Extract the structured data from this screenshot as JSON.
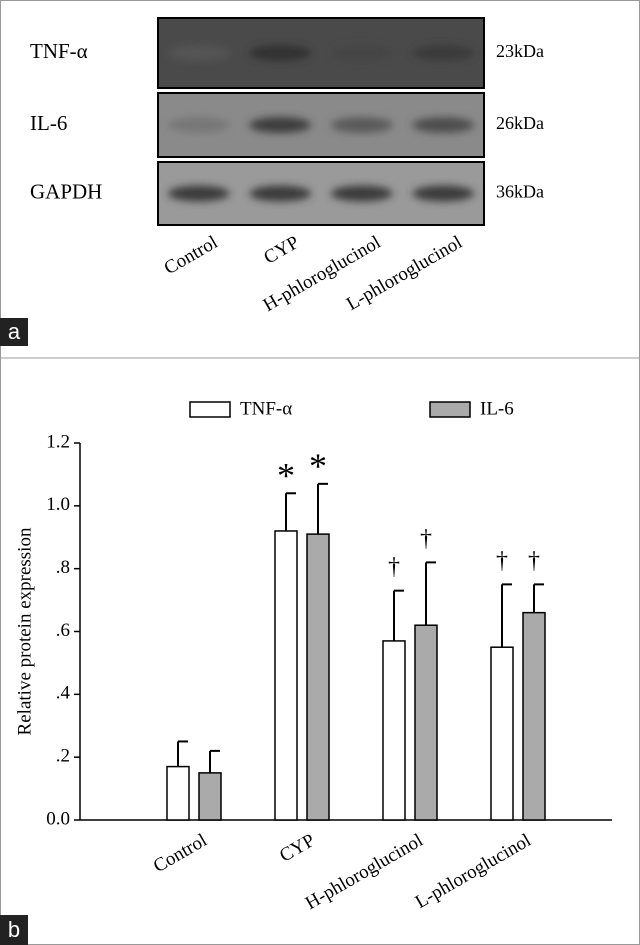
{
  "panels": [
    "a",
    "b"
  ],
  "blot": {
    "rows": [
      {
        "label": "TNF-α",
        "size": "23kDa"
      },
      {
        "label": "IL-6",
        "size": "26kDa"
      },
      {
        "label": "GAPDH",
        "size": "36kDa"
      }
    ],
    "lanes": [
      "Control",
      "CYP",
      "H-phloroglucinol",
      "L-phloroglucinol"
    ]
  },
  "chart_data": {
    "type": "bar",
    "y_label": "Relative protein expression",
    "categories": [
      "Control",
      "CYP",
      "H-phloroglucinol",
      "L-phloroglucinol"
    ],
    "series": [
      {
        "name": "TNF-α",
        "color": "#ffffff",
        "values": [
          0.17,
          0.92,
          0.57,
          0.55
        ],
        "errors": [
          0.08,
          0.12,
          0.16,
          0.2
        ],
        "annotations": [
          null,
          "*",
          "†",
          "†"
        ]
      },
      {
        "name": "IL-6",
        "color": "#aaaaaa",
        "values": [
          0.15,
          0.91,
          0.62,
          0.66
        ],
        "errors": [
          0.07,
          0.16,
          0.2,
          0.09
        ],
        "annotations": [
          null,
          "*",
          "†",
          "†"
        ]
      }
    ],
    "ylim": [
      0,
      1.2
    ],
    "yticks": [
      {
        "value": 0,
        "label": "0.0"
      },
      {
        "value": 0.2,
        "label": ".2"
      },
      {
        "value": 0.4,
        "label": ".4"
      },
      {
        "value": 0.6,
        "label": ".6"
      },
      {
        "value": 0.8,
        "label": ".8"
      },
      {
        "value": 1.0,
        "label": "1.0"
      },
      1.2
    ]
  }
}
